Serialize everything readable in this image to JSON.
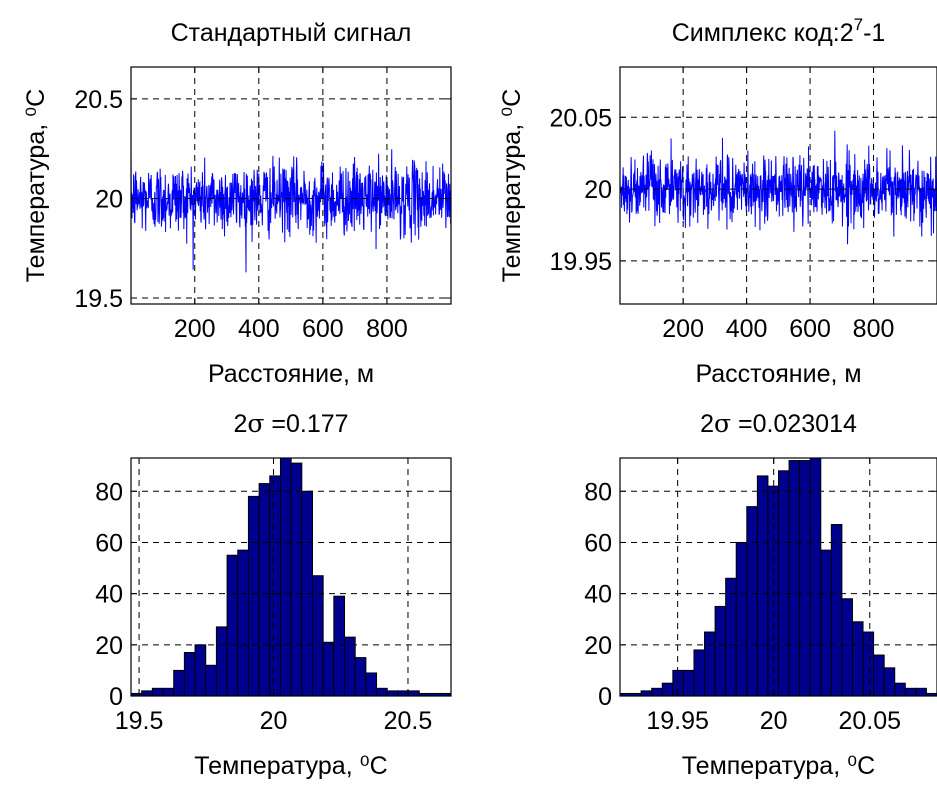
{
  "colors": {
    "line": "#0000ff",
    "bar_fill": "#00008f",
    "bar_edge": "#000000",
    "grid": "#000000",
    "background": "#ffffff"
  },
  "chart_data": [
    {
      "type": "line",
      "title": "Стандартный сигнал",
      "xlabel": "Расстояние, м",
      "ylabel": "Температура, ⁰C",
      "xlim": [
        1,
        1000
      ],
      "ylim": [
        19.47,
        20.66
      ],
      "xticks": [
        200,
        400,
        600,
        800
      ],
      "yticks": [
        19.5,
        20,
        20.5
      ],
      "xticklabels": [
        "200",
        "400",
        "600",
        "800"
      ],
      "yticklabels": [
        "19.5",
        "20",
        "20.5"
      ],
      "grid": true,
      "series": [
        {
          "mean": 20.0,
          "two_sigma": 0.177,
          "n_points": 1000
        }
      ]
    },
    {
      "type": "line",
      "title_text": "Симплекс код:2",
      "title_sup": "7",
      "title_tail": "-1",
      "xlabel": "Расстояние, м",
      "ylabel": "Температура, ⁰C",
      "xlim": [
        1,
        1000
      ],
      "ylim": [
        19.92,
        20.085
      ],
      "xticks": [
        200,
        400,
        600,
        800
      ],
      "yticks": [
        19.95,
        20,
        20.05
      ],
      "xticklabels": [
        "200",
        "400",
        "600",
        "800"
      ],
      "yticklabels": [
        "19.95",
        "20",
        "20.05"
      ],
      "grid": true,
      "series": [
        {
          "mean": 20.0,
          "two_sigma": 0.023014,
          "n_points": 1000
        }
      ]
    },
    {
      "type": "bar",
      "title_prefix": "2",
      "title_sigma": "σ",
      "title_suffix": " =0.177",
      "xlabel": "Температура, ⁰C",
      "xlim": [
        19.47,
        20.66
      ],
      "ylim": [
        0,
        93
      ],
      "xticks": [
        19.5,
        20,
        20.5
      ],
      "yticks": [
        0,
        20,
        40,
        60,
        80
      ],
      "xticklabels": [
        "19.5",
        "20",
        "20.5"
      ],
      "yticklabels": [
        "0",
        "20",
        "40",
        "60",
        "80"
      ],
      "grid": true,
      "bin_start": 19.47,
      "bin_width": 0.0397,
      "values": [
        1,
        2,
        3,
        3,
        10,
        17,
        20,
        12,
        27,
        55,
        57,
        78,
        83,
        86,
        93,
        91,
        80,
        47,
        21,
        39,
        23,
        15,
        9,
        3,
        2,
        2,
        2,
        1,
        1,
        1
      ]
    },
    {
      "type": "bar",
      "title_prefix": "2",
      "title_sigma": "σ",
      "title_suffix": " =0.023014",
      "xlabel": "Температура, ⁰C",
      "xlim": [
        19.92,
        20.085
      ],
      "ylim": [
        0,
        93
      ],
      "xticks": [
        19.95,
        20,
        20.05
      ],
      "yticks": [
        0,
        20,
        40,
        60,
        80
      ],
      "xticklabels": [
        "19.95",
        "20",
        "20.05"
      ],
      "yticklabels": [
        "0",
        "20",
        "40",
        "60",
        "80"
      ],
      "grid": true,
      "bin_start": 19.92,
      "bin_width": 0.0055,
      "values": [
        1,
        1,
        2,
        3,
        5,
        10,
        10,
        18,
        25,
        35,
        46,
        60,
        74,
        86,
        82,
        88,
        92,
        92,
        93,
        57,
        67,
        38,
        29,
        25,
        16,
        11,
        5,
        3,
        3,
        1
      ]
    }
  ]
}
